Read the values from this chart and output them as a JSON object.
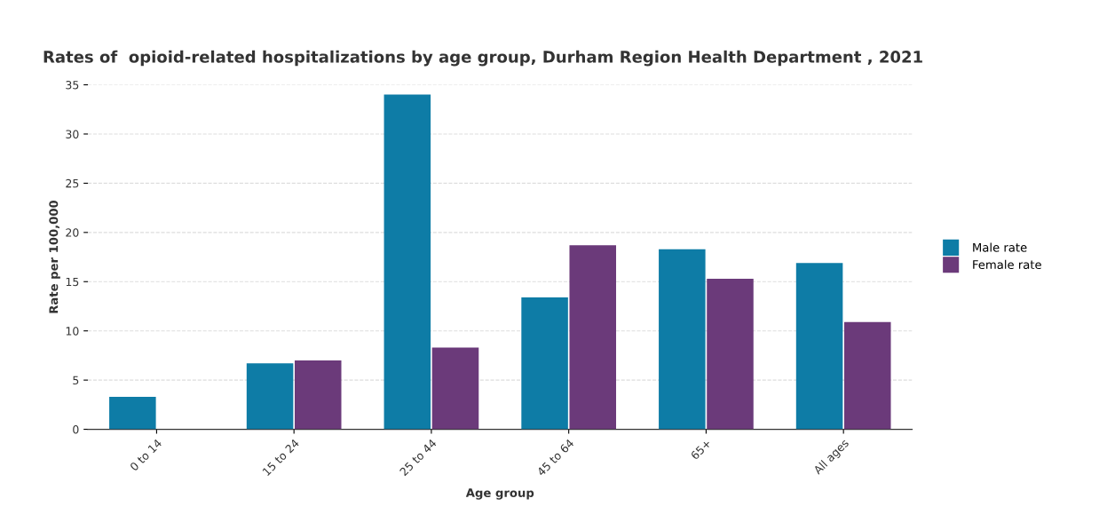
{
  "chart_data": {
    "type": "bar",
    "title": "Rates of  opioid-related hospitalizations by age group, Durham Region Health Department , 2021",
    "xlabel": "Age group",
    "ylabel": "Rate per 100,000",
    "categories": [
      "0 to 14",
      "15 to 24",
      "25 to 44",
      "45 to 64",
      "65+",
      "All ages"
    ],
    "series": [
      {
        "name": "Male rate",
        "color": "#0e7ca6",
        "values": [
          3.3,
          6.7,
          34.0,
          13.4,
          18.3,
          16.9
        ]
      },
      {
        "name": "Female rate",
        "color": "#6b3a7a",
        "values": [
          0,
          7.0,
          8.3,
          18.7,
          15.3,
          10.9
        ]
      }
    ],
    "ylim": [
      0,
      35
    ],
    "yticks": [
      0,
      5,
      10,
      15,
      20,
      25,
      30,
      35
    ],
    "grid": "y",
    "legend": "right"
  }
}
